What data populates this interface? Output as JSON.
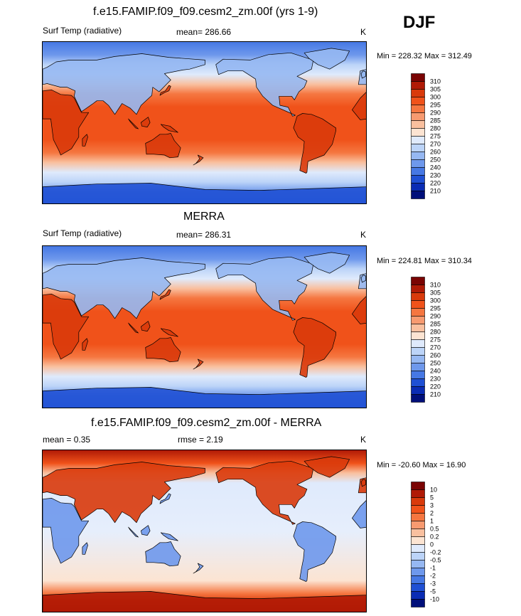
{
  "season_label": "DJF",
  "panels": [
    {
      "title": "f.e15.FAMIP.f09_f09.cesm2_zm.00f (yrs 1-9)",
      "left_label": "Surf Temp (radiative)",
      "center_label": "mean= 286.66",
      "units": "K",
      "minmax": "Min = 228.32 Max = 312.49",
      "colorbar_labels": [
        "310",
        "305",
        "300",
        "295",
        "290",
        "285",
        "280",
        "275",
        "270",
        "260",
        "250",
        "240",
        "230",
        "220",
        "210"
      ],
      "kind": "abs"
    },
    {
      "title": "MERRA",
      "left_label": "Surf Temp (radiative)",
      "center_label": "mean= 286.31",
      "units": "K",
      "minmax": "Min = 224.81 Max = 310.34",
      "colorbar_labels": [
        "310",
        "305",
        "300",
        "295",
        "290",
        "285",
        "280",
        "275",
        "270",
        "260",
        "250",
        "240",
        "230",
        "220",
        "210"
      ],
      "kind": "abs"
    },
    {
      "title": "f.e15.FAMIP.f09_f09.cesm2_zm.00f - MERRA",
      "left_label": "mean =   0.35",
      "center_label": "rmse =   2.19",
      "units": "K",
      "minmax": "Min = -20.60 Max =  16.90",
      "colorbar_labels": [
        "10",
        "5",
        "3",
        "2",
        "1",
        "0.5",
        "0.2",
        "0",
        "-0.2",
        "-0.5",
        "-1",
        "-2",
        "-3",
        "-5",
        "-10"
      ],
      "kind": "diff"
    }
  ],
  "colors": {
    "colorbar_swatches": [
      "#7a0403",
      "#b01a06",
      "#d93a0b",
      "#f0521a",
      "#f57640",
      "#f79a70",
      "#f9c09f",
      "#fce4d2",
      "#dfeafc",
      "#bcd4f8",
      "#96b8f2",
      "#6e98ec",
      "#4678e4",
      "#1f50d4",
      "#0a2cb4",
      "#000f7a"
    ],
    "coastline": "#000000"
  }
}
